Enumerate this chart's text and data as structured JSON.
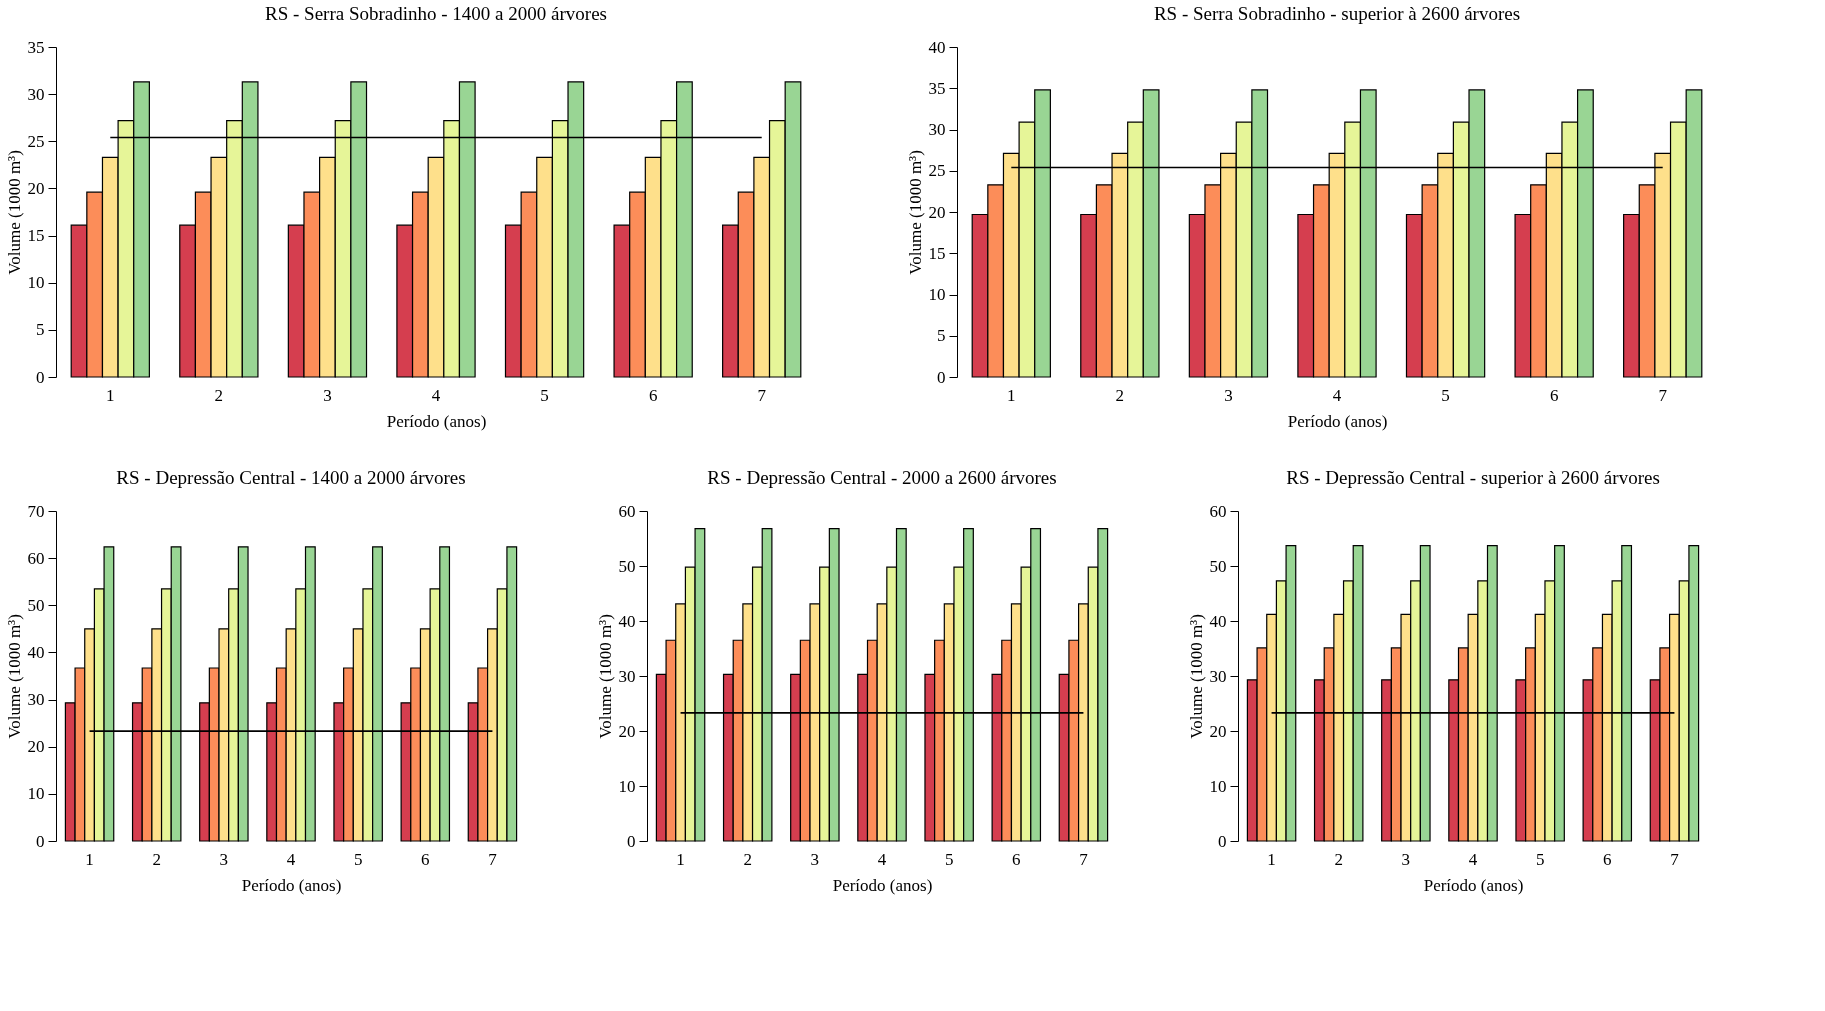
{
  "chart_data": [
    {
      "type": "bar",
      "title": "RS - Serra Sobradinho - 1400 a 2000 árvores",
      "xlabel": "Período (anos)",
      "ylabel": "Volume  (1000 m³)",
      "categories": [
        "1",
        "2",
        "3",
        "4",
        "5",
        "6",
        "7"
      ],
      "ylim": [
        0,
        35
      ],
      "yticks": [
        0,
        5,
        10,
        15,
        20,
        25,
        30,
        35
      ],
      "series": [
        {
          "color": "#d53e4f",
          "values": [
            16.1,
            16.1,
            16.1,
            16.1,
            16.1,
            16.1,
            16.1
          ]
        },
        {
          "color": "#fc8d59",
          "values": [
            19.6,
            19.6,
            19.6,
            19.6,
            19.6,
            19.6,
            19.6
          ]
        },
        {
          "color": "#fee08b",
          "values": [
            23.3,
            23.3,
            23.3,
            23.3,
            23.3,
            23.3,
            23.3
          ]
        },
        {
          "color": "#e6f598",
          "values": [
            27.2,
            27.2,
            27.2,
            27.2,
            27.2,
            27.2,
            27.2
          ]
        },
        {
          "color": "#99d594",
          "values": [
            31.3,
            31.3,
            31.3,
            31.3,
            31.3,
            31.3,
            31.3
          ]
        },
        {
          "type": "line",
          "color": "#000000",
          "values": [
            25.4,
            25.4,
            25.4,
            25.4,
            25.4,
            25.4,
            25.4
          ]
        }
      ]
    },
    {
      "type": "bar",
      "title": "RS - Serra Sobradinho - superior à 2600 árvores",
      "xlabel": "Período (anos)",
      "ylabel": "Volume  (1000 m³)",
      "categories": [
        "1",
        "2",
        "3",
        "4",
        "5",
        "6",
        "7"
      ],
      "ylim": [
        0,
        40
      ],
      "yticks": [
        0,
        5,
        10,
        15,
        20,
        25,
        30,
        35,
        40
      ],
      "series": [
        {
          "color": "#d53e4f",
          "values": [
            19.7,
            19.7,
            19.7,
            19.7,
            19.7,
            19.7,
            19.7
          ]
        },
        {
          "color": "#fc8d59",
          "values": [
            23.3,
            23.3,
            23.3,
            23.3,
            23.3,
            23.3,
            23.3
          ]
        },
        {
          "color": "#fee08b",
          "values": [
            27.1,
            27.1,
            27.1,
            27.1,
            27.1,
            27.1,
            27.1
          ]
        },
        {
          "color": "#e6f598",
          "values": [
            30.9,
            30.9,
            30.9,
            30.9,
            30.9,
            30.9,
            30.9
          ]
        },
        {
          "color": "#99d594",
          "values": [
            34.8,
            34.8,
            34.8,
            34.8,
            34.8,
            34.8,
            34.8
          ]
        },
        {
          "type": "line",
          "color": "#000000",
          "values": [
            25.4,
            25.4,
            25.4,
            25.4,
            25.4,
            25.4,
            25.4
          ]
        }
      ]
    },
    {
      "type": "bar",
      "title": "RS - Depressão Central - 1400 a 2000 árvores",
      "xlabel": "Período (anos)",
      "ylabel": "Volume  (1000 m³)",
      "categories": [
        "1",
        "2",
        "3",
        "4",
        "5",
        "6",
        "7"
      ],
      "ylim": [
        0,
        70
      ],
      "yticks": [
        0,
        10,
        20,
        30,
        40,
        50,
        60,
        70
      ],
      "series": [
        {
          "color": "#d53e4f",
          "values": [
            29.3,
            29.3,
            29.3,
            29.3,
            29.3,
            29.3,
            29.3
          ]
        },
        {
          "color": "#fc8d59",
          "values": [
            36.7,
            36.7,
            36.7,
            36.7,
            36.7,
            36.7,
            36.7
          ]
        },
        {
          "color": "#fee08b",
          "values": [
            45.0,
            45.0,
            45.0,
            45.0,
            45.0,
            45.0,
            45.0
          ]
        },
        {
          "color": "#e6f598",
          "values": [
            53.5,
            53.5,
            53.5,
            53.5,
            53.5,
            53.5,
            53.5
          ]
        },
        {
          "color": "#99d594",
          "values": [
            62.4,
            62.4,
            62.4,
            62.4,
            62.4,
            62.4,
            62.4
          ]
        },
        {
          "type": "line",
          "color": "#000000",
          "values": [
            23.3,
            23.3,
            23.3,
            23.3,
            23.3,
            23.3,
            23.3
          ]
        }
      ]
    },
    {
      "type": "bar",
      "title": "RS - Depressão Central - 2000 a 2600 árvores",
      "xlabel": "Período (anos)",
      "ylabel": "Volume  (1000 m³)",
      "categories": [
        "1",
        "2",
        "3",
        "4",
        "5",
        "6",
        "7"
      ],
      "ylim": [
        0,
        60
      ],
      "yticks": [
        0,
        10,
        20,
        30,
        40,
        50,
        60
      ],
      "series": [
        {
          "color": "#d53e4f",
          "values": [
            30.3,
            30.3,
            30.3,
            30.3,
            30.3,
            30.3,
            30.3
          ]
        },
        {
          "color": "#fc8d59",
          "values": [
            36.5,
            36.5,
            36.5,
            36.5,
            36.5,
            36.5,
            36.5
          ]
        },
        {
          "color": "#fee08b",
          "values": [
            43.1,
            43.1,
            43.1,
            43.1,
            43.1,
            43.1,
            43.1
          ]
        },
        {
          "color": "#e6f598",
          "values": [
            49.8,
            49.8,
            49.8,
            49.8,
            49.8,
            49.8,
            49.8
          ]
        },
        {
          "color": "#99d594",
          "values": [
            56.8,
            56.8,
            56.8,
            56.8,
            56.8,
            56.8,
            56.8
          ]
        },
        {
          "type": "line",
          "color": "#000000",
          "values": [
            23.3,
            23.3,
            23.3,
            23.3,
            23.3,
            23.3,
            23.3
          ]
        }
      ]
    },
    {
      "type": "bar",
      "title": "RS - Depressão Central - superior à 2600 árvores",
      "xlabel": "Período (anos)",
      "ylabel": "Volume  (1000 m³)",
      "categories": [
        "1",
        "2",
        "3",
        "4",
        "5",
        "6",
        "7"
      ],
      "ylim": [
        0,
        60
      ],
      "yticks": [
        0,
        10,
        20,
        30,
        40,
        50,
        60
      ],
      "series": [
        {
          "color": "#d53e4f",
          "values": [
            29.3,
            29.3,
            29.3,
            29.3,
            29.3,
            29.3,
            29.3
          ]
        },
        {
          "color": "#fc8d59",
          "values": [
            35.1,
            35.1,
            35.1,
            35.1,
            35.1,
            35.1,
            35.1
          ]
        },
        {
          "color": "#fee08b",
          "values": [
            41.2,
            41.2,
            41.2,
            41.2,
            41.2,
            41.2,
            41.2
          ]
        },
        {
          "color": "#e6f598",
          "values": [
            47.3,
            47.3,
            47.3,
            47.3,
            47.3,
            47.3,
            47.3
          ]
        },
        {
          "color": "#99d594",
          "values": [
            53.7,
            53.7,
            53.7,
            53.7,
            53.7,
            53.7,
            53.7
          ]
        },
        {
          "type": "line",
          "color": "#000000",
          "values": [
            23.3,
            23.3,
            23.3,
            23.3,
            23.3,
            23.3,
            23.3
          ]
        }
      ]
    }
  ]
}
